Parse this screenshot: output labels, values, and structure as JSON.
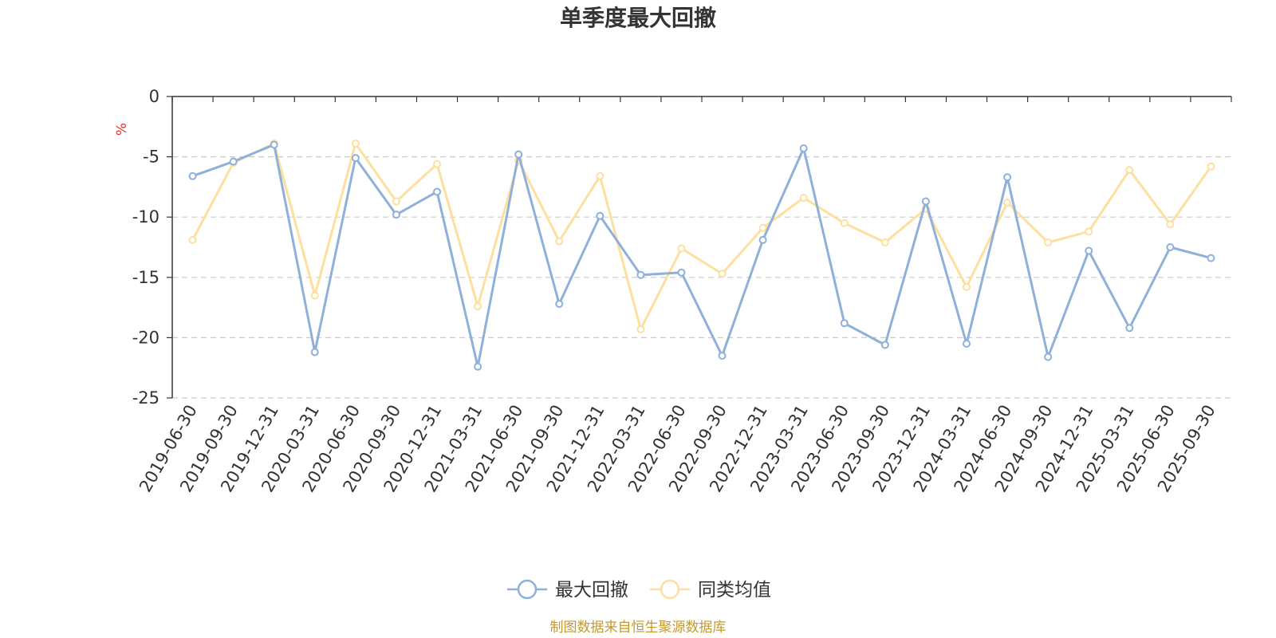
{
  "chart_data": {
    "type": "line",
    "title": "单季度最大回撤",
    "ylabel": "%",
    "ylim": [
      -25,
      0
    ],
    "yticks": [
      0,
      -5,
      -10,
      -15,
      -20,
      -25
    ],
    "yticks_labels": [
      "0",
      "-5",
      "-10",
      "-15",
      "-20",
      "-25"
    ],
    "grid": true,
    "legend_position": "bottom-center",
    "categories": [
      "2019-06-30",
      "2019-09-30",
      "2019-12-31",
      "2020-03-31",
      "2020-06-30",
      "2020-09-30",
      "2020-12-31",
      "2021-03-31",
      "2021-06-30",
      "2021-09-30",
      "2021-12-31",
      "2022-03-31",
      "2022-06-30",
      "2022-09-30",
      "2022-12-31",
      "2023-03-31",
      "2023-06-30",
      "2023-09-30",
      "2023-12-31",
      "2024-03-31",
      "2024-06-30",
      "2024-09-30",
      "2024-12-31",
      "2025-03-31",
      "2025-06-30",
      "2025-09-30"
    ],
    "series": [
      {
        "name": "最大回撤",
        "color": "#8fb0d9",
        "values": [
          -6.6,
          -5.4,
          -4.0,
          -21.2,
          -5.1,
          -9.8,
          -7.9,
          -22.4,
          -4.8,
          -17.2,
          -9.9,
          -14.8,
          -14.6,
          -21.5,
          -11.9,
          -4.3,
          -18.8,
          -20.6,
          -8.7,
          -20.5,
          -6.7,
          -21.6,
          -12.8,
          -19.2,
          -12.5,
          -13.4
        ]
      },
      {
        "name": "同类均值",
        "color": "#fddfa0",
        "values": [
          -11.9,
          -5.5,
          -3.9,
          -16.5,
          -3.9,
          -8.7,
          -5.6,
          -17.4,
          -5.3,
          -12.0,
          -6.6,
          -19.3,
          -12.6,
          -14.7,
          -10.9,
          -8.4,
          -10.5,
          -12.1,
          -9.3,
          -15.8,
          -8.8,
          -12.1,
          -11.2,
          -6.1,
          -10.6,
          -5.8
        ]
      }
    ],
    "source": "制图数据来自恒生聚源数据库",
    "source_color": "#c49a2e"
  }
}
